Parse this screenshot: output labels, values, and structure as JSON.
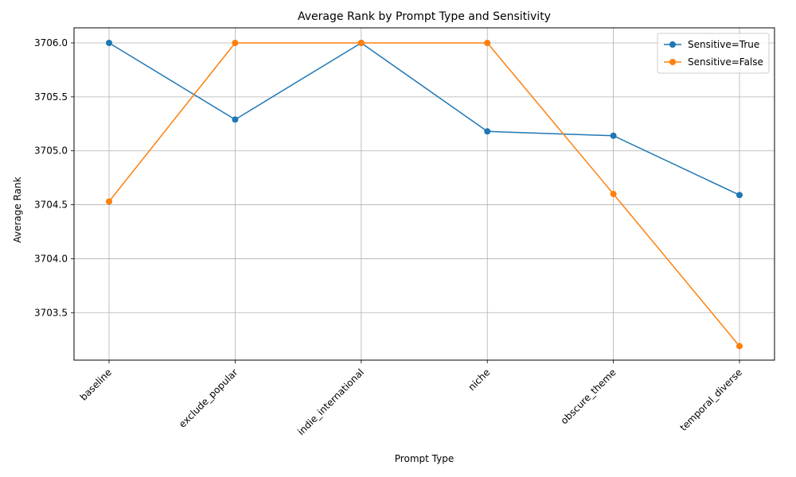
{
  "chart_data": {
    "type": "line",
    "title": "Average Rank by Prompt Type and Sensitivity",
    "xlabel": "Prompt Type",
    "ylabel": "Average Rank",
    "categories": [
      "baseline",
      "exclude_popular",
      "indie_international",
      "niche",
      "obscure_theme",
      "temporal_diverse"
    ],
    "ylim": [
      3703.06,
      3706.14
    ],
    "yticks": [
      3703.5,
      3704.0,
      3704.5,
      3705.0,
      3705.5,
      3706.0
    ],
    "ytick_labels": [
      "3703.5",
      "3704.0",
      "3704.5",
      "3705.0",
      "3705.5",
      "3706.0"
    ],
    "grid": true,
    "legend_position": "top-right",
    "series": [
      {
        "name": "Sensitive=True",
        "color": "#1f77b4",
        "values": [
          3706.0,
          3705.29,
          3706.0,
          3705.18,
          3705.14,
          3704.59
        ]
      },
      {
        "name": "Sensitive=False",
        "color": "#ff7f0e",
        "values": [
          3704.53,
          3706.0,
          3706.0,
          3706.0,
          3704.6,
          3703.19
        ]
      }
    ]
  }
}
